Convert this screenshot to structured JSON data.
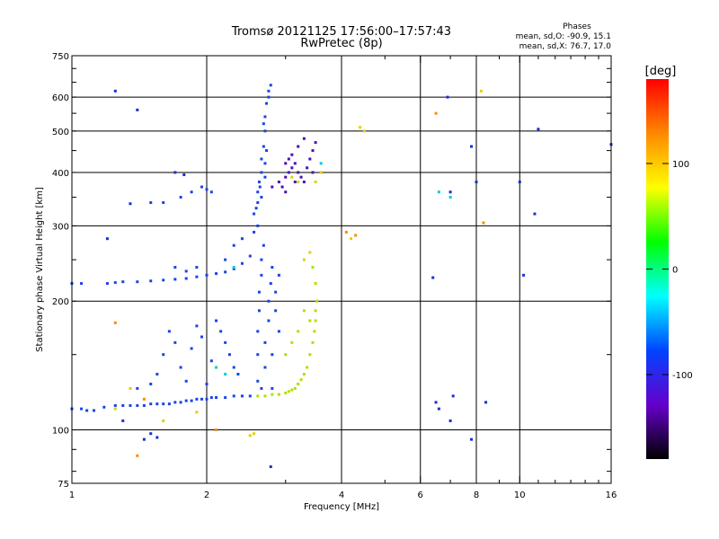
{
  "chart_data": {
    "type": "scatter",
    "title": "Tromsø 20121125 17:56:00–17:57:43",
    "subtitle": "RwPretec (8p)",
    "xlabel": "Frequency [MHz]",
    "ylabel": "Stationary phase Virtual Height [km]",
    "x_scale": "log",
    "y_scale": "log",
    "xlim": [
      1,
      16
    ],
    "ylim": [
      75,
      750
    ],
    "xticks": [
      1,
      2,
      4,
      6,
      8,
      10,
      16
    ],
    "yticks": [
      75,
      100,
      200,
      300,
      400,
      500,
      600,
      750
    ],
    "x_gridlines": [
      2,
      4,
      6,
      8,
      10
    ],
    "y_gridlines": [
      100,
      200,
      300,
      400,
      500,
      600
    ],
    "grid": true,
    "info": {
      "heading": "Phases",
      "line1": "mean, sd,O: -90.9, 15.1",
      "line2": "mean, sd,X:  76.7, 17.0"
    },
    "colorbar": {
      "label": "[deg]",
      "range": [
        -180,
        180
      ],
      "ticks": [
        100,
        0,
        -100
      ],
      "colors": [
        "#ff0000",
        "#ff8800",
        "#ffff00",
        "#00ff00",
        "#00ffff",
        "#0044ff",
        "#6600cc",
        "#000000"
      ]
    },
    "series": [
      {
        "phase": -100,
        "color": "#1a44e6",
        "points": [
          [
            1.0,
            112
          ],
          [
            1.05,
            112
          ],
          [
            1.08,
            111
          ],
          [
            1.12,
            111
          ],
          [
            1.18,
            113
          ],
          [
            1.25,
            114
          ],
          [
            1.3,
            114
          ],
          [
            1.35,
            114
          ],
          [
            1.4,
            114
          ],
          [
            1.45,
            114
          ],
          [
            1.5,
            115
          ],
          [
            1.55,
            115
          ],
          [
            1.6,
            115
          ],
          [
            1.65,
            115
          ],
          [
            1.7,
            116
          ],
          [
            1.75,
            116
          ],
          [
            1.8,
            117
          ],
          [
            1.85,
            117
          ],
          [
            1.9,
            118
          ],
          [
            1.95,
            118
          ],
          [
            2.0,
            118
          ],
          [
            2.05,
            119
          ],
          [
            2.1,
            119
          ],
          [
            2.2,
            119
          ],
          [
            2.3,
            120
          ],
          [
            2.4,
            120
          ],
          [
            2.5,
            120
          ],
          [
            1.0,
            220
          ],
          [
            1.05,
            220
          ],
          [
            1.2,
            220
          ],
          [
            1.25,
            221
          ],
          [
            1.3,
            222
          ],
          [
            1.4,
            222
          ],
          [
            1.5,
            223
          ],
          [
            1.6,
            224
          ],
          [
            1.7,
            225
          ],
          [
            1.8,
            226
          ],
          [
            1.9,
            228
          ],
          [
            2.0,
            230
          ],
          [
            2.1,
            232
          ],
          [
            2.2,
            234
          ],
          [
            2.3,
            238
          ],
          [
            2.4,
            245
          ],
          [
            2.5,
            255
          ],
          [
            2.55,
            290
          ],
          [
            2.55,
            320
          ],
          [
            2.6,
            340
          ],
          [
            2.6,
            360
          ],
          [
            2.62,
            380
          ],
          [
            2.65,
            400
          ],
          [
            2.65,
            430
          ],
          [
            2.68,
            460
          ],
          [
            2.7,
            500
          ],
          [
            2.7,
            540
          ],
          [
            2.72,
            580
          ],
          [
            2.75,
            620
          ],
          [
            2.6,
            300
          ],
          [
            2.65,
            350
          ],
          [
            2.7,
            420
          ],
          [
            2.72,
            450
          ],
          [
            2.68,
            520
          ],
          [
            2.75,
            600
          ],
          [
            2.78,
            640
          ],
          [
            2.58,
            330
          ],
          [
            2.63,
            370
          ],
          [
            2.7,
            390
          ],
          [
            2.6,
            150
          ],
          [
            2.6,
            170
          ],
          [
            2.62,
            190
          ],
          [
            2.62,
            210
          ],
          [
            2.65,
            230
          ],
          [
            2.65,
            250
          ],
          [
            2.68,
            270
          ],
          [
            2.7,
            140
          ],
          [
            2.7,
            160
          ],
          [
            2.75,
            180
          ],
          [
            2.75,
            200
          ],
          [
            2.78,
            220
          ],
          [
            2.8,
            240
          ],
          [
            2.6,
            130
          ],
          [
            2.65,
            125
          ],
          [
            2.8,
            125
          ],
          [
            2.8,
            150
          ],
          [
            2.85,
            190
          ],
          [
            2.85,
            210
          ],
          [
            2.9,
            170
          ],
          [
            2.9,
            230
          ],
          [
            1.55,
            135
          ],
          [
            1.6,
            150
          ],
          [
            1.65,
            170
          ],
          [
            1.7,
            160
          ],
          [
            1.75,
            140
          ],
          [
            1.8,
            130
          ],
          [
            1.85,
            155
          ],
          [
            1.9,
            175
          ],
          [
            1.95,
            165
          ],
          [
            2.05,
            145
          ],
          [
            2.1,
            180
          ],
          [
            2.15,
            170
          ],
          [
            2.2,
            160
          ],
          [
            2.25,
            150
          ],
          [
            2.3,
            140
          ],
          [
            2.35,
            135
          ],
          [
            2.0,
            128
          ],
          [
            1.5,
            128
          ],
          [
            1.4,
            125
          ],
          [
            1.5,
            340
          ],
          [
            1.6,
            340
          ],
          [
            1.75,
            350
          ],
          [
            1.85,
            360
          ],
          [
            1.95,
            370
          ],
          [
            2.0,
            365
          ],
          [
            2.05,
            360
          ],
          [
            2.3,
            270
          ],
          [
            2.4,
            280
          ],
          [
            2.2,
            250
          ],
          [
            1.7,
            240
          ],
          [
            1.8,
            235
          ],
          [
            1.9,
            240
          ]
        ]
      },
      {
        "phase": -130,
        "color": "#4a10b0",
        "points": [
          [
            2.9,
            380
          ],
          [
            3.0,
            390
          ],
          [
            3.05,
            400
          ],
          [
            3.1,
            410
          ],
          [
            3.15,
            420
          ],
          [
            3.2,
            400
          ],
          [
            3.25,
            390
          ],
          [
            3.3,
            380
          ],
          [
            3.35,
            410
          ],
          [
            3.4,
            430
          ],
          [
            3.45,
            450
          ],
          [
            3.5,
            470
          ],
          [
            2.95,
            370
          ],
          [
            3.0,
            420
          ],
          [
            3.1,
            440
          ],
          [
            3.2,
            460
          ],
          [
            3.3,
            480
          ],
          [
            3.45,
            400
          ],
          [
            3.0,
            360
          ],
          [
            2.8,
            370
          ],
          [
            3.05,
            430
          ],
          [
            3.15,
            380
          ]
        ]
      },
      {
        "phase": 100,
        "color": "#b0e000",
        "points": [
          [
            2.6,
            120
          ],
          [
            2.7,
            120
          ],
          [
            2.8,
            121
          ],
          [
            2.9,
            121
          ],
          [
            3.0,
            122
          ],
          [
            3.05,
            123
          ],
          [
            3.1,
            124
          ],
          [
            3.15,
            125
          ],
          [
            3.2,
            128
          ],
          [
            3.25,
            131
          ],
          [
            3.3,
            135
          ],
          [
            3.35,
            140
          ],
          [
            3.4,
            150
          ],
          [
            3.45,
            160
          ],
          [
            3.48,
            170
          ],
          [
            3.5,
            180
          ],
          [
            3.5,
            190
          ],
          [
            3.52,
            200
          ],
          [
            3.4,
            180
          ],
          [
            3.3,
            190
          ],
          [
            3.2,
            170
          ],
          [
            3.1,
            160
          ],
          [
            3.0,
            150
          ],
          [
            3.5,
            220
          ],
          [
            3.45,
            240
          ]
        ]
      },
      {
        "phase": 80,
        "color": "#e0d000",
        "points": [
          [
            3.3,
            250
          ],
          [
            3.4,
            260
          ],
          [
            3.1,
            390
          ],
          [
            3.2,
            380
          ],
          [
            4.2,
            280
          ],
          [
            4.4,
            510
          ],
          [
            4.5,
            500
          ],
          [
            1.25,
            112
          ],
          [
            1.35,
            125
          ],
          [
            1.6,
            105
          ],
          [
            1.9,
            110
          ],
          [
            2.5,
            97
          ],
          [
            2.55,
            98
          ],
          [
            3.5,
            380
          ],
          [
            3.6,
            400
          ],
          [
            8.2,
            620
          ]
        ]
      },
      {
        "phase": 140,
        "color": "#ff8800",
        "points": [
          [
            1.25,
            178
          ],
          [
            1.4,
            87
          ],
          [
            2.1,
            100
          ],
          [
            4.3,
            285
          ],
          [
            4.1,
            290
          ],
          [
            8.3,
            305
          ],
          [
            6.5,
            550
          ],
          [
            1.45,
            118
          ]
        ]
      },
      {
        "phase": 40,
        "color": "#00d0c8",
        "points": [
          [
            2.1,
            140
          ],
          [
            2.2,
            135
          ],
          [
            6.6,
            360
          ],
          [
            7.0,
            350
          ],
          [
            3.6,
            420
          ],
          [
            2.3,
            240
          ]
        ]
      },
      {
        "phase": -110,
        "color": "#1a2ed0",
        "points": [
          [
            1.25,
            620
          ],
          [
            1.4,
            560
          ],
          [
            1.2,
            280
          ],
          [
            1.35,
            338
          ],
          [
            1.7,
            400
          ],
          [
            1.78,
            395
          ],
          [
            6.9,
            600
          ],
          [
            7.8,
            460
          ],
          [
            8.0,
            380
          ],
          [
            10.0,
            380
          ],
          [
            10.2,
            230
          ],
          [
            11.0,
            505
          ],
          [
            10.8,
            320
          ],
          [
            16.0,
            465
          ],
          [
            6.4,
            227
          ],
          [
            7.0,
            360
          ],
          [
            7.1,
            120
          ],
          [
            6.5,
            116
          ],
          [
            8.4,
            116
          ],
          [
            7.8,
            95
          ],
          [
            2.78,
            82
          ],
          [
            1.5,
            98
          ],
          [
            1.55,
            96
          ],
          [
            1.45,
            95
          ],
          [
            1.3,
            105
          ],
          [
            6.6,
            112
          ],
          [
            7.0,
            105
          ]
        ]
      }
    ]
  }
}
